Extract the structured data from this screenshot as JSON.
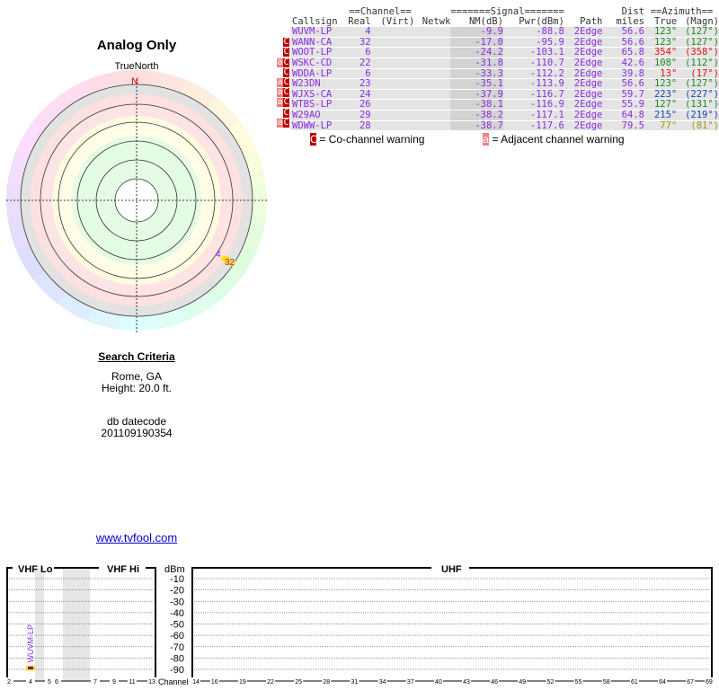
{
  "title": "Analog Only",
  "polar": {
    "label": "TrueNorth",
    "north": "N",
    "markers": [
      {
        "label": "4",
        "azimuth": 123
      },
      {
        "label": "32",
        "azimuth": 123
      }
    ]
  },
  "search": {
    "heading": "Search Criteria",
    "location": "Rome, GA",
    "height": "Height: 20.0 ft.",
    "db_label": "db datecode",
    "db_code": "201109190354"
  },
  "link": "www.tvfool.com",
  "table": {
    "group_channel": "==Channel==",
    "group_signal": "=======Signal=======",
    "group_dist": "Dist",
    "group_azimuth": "==Azimuth==",
    "columns": [
      "Callsign",
      "Real",
      "(Virt)",
      "Netwk",
      "NM(dB)",
      "Pwr(dBm)",
      "Path",
      "miles",
      "True",
      "(Magn)"
    ],
    "rows": [
      {
        "warn": "",
        "callsign": "WUVM-LP",
        "real": "4",
        "virt": "",
        "netwk": "",
        "nm": "-9.9",
        "pwr": "-88.8",
        "path": "2Edge",
        "dist": "56.6",
        "true": "123°",
        "magn": "(127°)",
        "az_color": "#1a8a1a"
      },
      {
        "warn": "C",
        "callsign": "WANN-CA",
        "real": "32",
        "virt": "",
        "netwk": "",
        "nm": "-17.0",
        "pwr": "-95.9",
        "path": "2Edge",
        "dist": "56.6",
        "true": "123°",
        "magn": "(127°)",
        "az_color": "#1a8a1a"
      },
      {
        "warn": "C",
        "callsign": "WOOT-LP",
        "real": "6",
        "virt": "",
        "netwk": "",
        "nm": "-24.2",
        "pwr": "-103.1",
        "path": "2Edge",
        "dist": "65.8",
        "true": "354°",
        "magn": "(358°)",
        "az_color": "#dd1111"
      },
      {
        "warn": "aC",
        "callsign": "WSKC-CD",
        "real": "22",
        "virt": "",
        "netwk": "",
        "nm": "-31.8",
        "pwr": "-110.7",
        "path": "2Edge",
        "dist": "42.6",
        "true": "108°",
        "magn": "(112°)",
        "az_color": "#1a8a1a"
      },
      {
        "warn": "C",
        "callsign": "WDDA-LP",
        "real": "6",
        "virt": "",
        "netwk": "",
        "nm": "-33.3",
        "pwr": "-112.2",
        "path": "2Edge",
        "dist": "39.8",
        "true": "13°",
        "magn": "(17°)",
        "az_color": "#dd1111"
      },
      {
        "warn": "aC",
        "callsign": "W23DN",
        "real": "23",
        "virt": "",
        "netwk": "",
        "nm": "-35.1",
        "pwr": "-113.9",
        "path": "2Edge",
        "dist": "56.6",
        "true": "123°",
        "magn": "(127°)",
        "az_color": "#1a8a1a"
      },
      {
        "warn": "aC",
        "callsign": "WJXS-CA",
        "real": "24",
        "virt": "",
        "netwk": "",
        "nm": "-37.9",
        "pwr": "-116.7",
        "path": "2Edge",
        "dist": "59.7",
        "true": "223°",
        "magn": "(227°)",
        "az_color": "#1144bb"
      },
      {
        "warn": "aC",
        "callsign": "WTBS-LP",
        "real": "26",
        "virt": "",
        "netwk": "",
        "nm": "-38.1",
        "pwr": "-116.9",
        "path": "2Edge",
        "dist": "55.9",
        "true": "127°",
        "magn": "(131°)",
        "az_color": "#1a8a1a"
      },
      {
        "warn": "C",
        "callsign": "W29AO",
        "real": "29",
        "virt": "",
        "netwk": "",
        "nm": "-38.2",
        "pwr": "-117.1",
        "path": "2Edge",
        "dist": "64.8",
        "true": "215°",
        "magn": "(219°)",
        "az_color": "#1144bb"
      },
      {
        "warn": "aC",
        "callsign": "WDWW-LP",
        "real": "28",
        "virt": "",
        "netwk": "",
        "nm": "-38.7",
        "pwr": "-117.6",
        "path": "2Edge",
        "dist": "79.5",
        "true": "77°",
        "magn": "(81°)",
        "az_color": "#999911"
      }
    ]
  },
  "legend": {
    "co_badge": "C",
    "co_text": "= Co-channel warning",
    "adj_badge": "a",
    "adj_text": "= Adjacent channel warning"
  },
  "chart_data": {
    "type": "bar",
    "sections": [
      "VHF Lo",
      "VHF Hi",
      "UHF"
    ],
    "ylabel": "dBm",
    "xlabel": "Channel",
    "yticks": [
      "-10",
      "-20",
      "-30",
      "-40",
      "-50",
      "-60",
      "-70",
      "-80",
      "-90"
    ],
    "vhf_channels": [
      "2",
      "4",
      "5",
      "6",
      "7",
      "9",
      "11",
      "13"
    ],
    "uhf_channels": [
      "14",
      "16",
      "19",
      "22",
      "25",
      "28",
      "31",
      "34",
      "37",
      "40",
      "43",
      "46",
      "49",
      "52",
      "55",
      "58",
      "61",
      "64",
      "67",
      "69"
    ],
    "series": [
      {
        "name": "WUVM-LP",
        "channel": 4,
        "value": -88.8
      }
    ],
    "ylim": [
      -90,
      -10
    ]
  }
}
